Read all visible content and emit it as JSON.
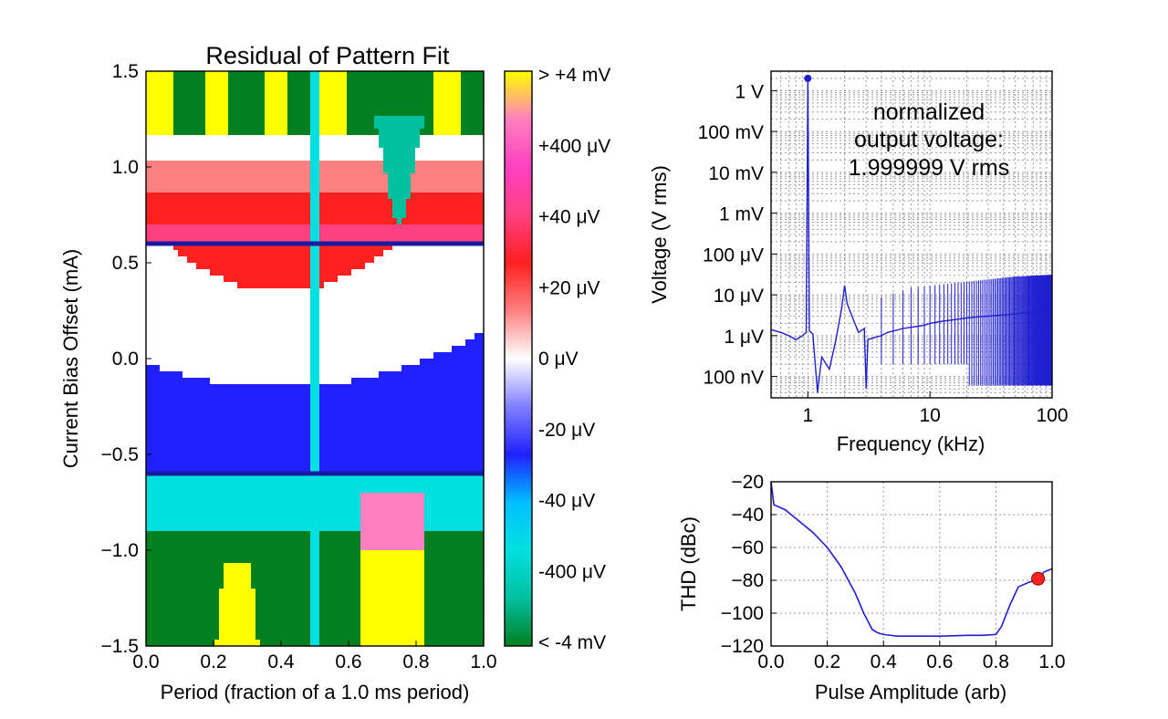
{
  "chart_data": [
    {
      "type": "heatmap",
      "title": "Residual of Pattern Fit",
      "xlabel": "Period (fraction of a 1.0 ms period)",
      "ylabel": "Current Bias Offset (mA)",
      "xlim": [
        0.0,
        1.0
      ],
      "ylim": [
        -1.5,
        1.5
      ],
      "xticks": [
        "0.0",
        "0.2",
        "0.4",
        "0.6",
        "0.8",
        "1.0"
      ],
      "yticks": [
        "1.5",
        "1.0",
        "0.5",
        "0.0",
        "−0.5",
        "−1.0",
        "−1.5"
      ],
      "colorbar": {
        "labels": [
          "> +4 mV",
          "+400 μV",
          "+40 μV",
          "+20 μV",
          "0 μV",
          "-20 μV",
          "-40 μV",
          "-400 μV",
          "< -4 mV"
        ],
        "colors": [
          "#ffff00",
          "#ff80c0",
          "#ff40c0",
          "#ff4080",
          "#ff2020",
          "#ff8080",
          "#ffffff",
          "#8080ff",
          "#2020ff",
          "#00c0ff",
          "#00e0e0",
          "#00c0a0",
          "#008020"
        ]
      },
      "hlines": [
        0.6,
        -0.6
      ],
      "hline_color": "#1a1aa0"
    },
    {
      "type": "line",
      "annotation": [
        "normalized",
        "output voltage:",
        "1.999999 V rms"
      ],
      "xlabel": "Frequency (kHz)",
      "ylabel": "Voltage (V rms)",
      "xscale": "log",
      "yscale": "log",
      "xlim": [
        0.5,
        100
      ],
      "ylim": [
        3e-08,
        3
      ],
      "xticks": [
        "1",
        "10",
        "100"
      ],
      "yticks": [
        "1 V",
        "100 mV",
        "10 mV",
        "1 mV",
        "100 μV",
        "10 μV",
        "1 μV",
        "100 nV"
      ],
      "grid": true,
      "color": "#1f1fd0",
      "series": [
        {
          "x": [
            0.5,
            0.6,
            0.7,
            0.8,
            0.9,
            0.97,
            1.0,
            1.03,
            1.1,
            1.2,
            1.3,
            1.5,
            1.7,
            1.9,
            2.0,
            2.1,
            2.3,
            2.6,
            2.9,
            3.0,
            3.1,
            3.5,
            4.0,
            4.5,
            5.0,
            6.0,
            7.0,
            8.0,
            9.0,
            10,
            12,
            15,
            20,
            25,
            30,
            40,
            50,
            60,
            70,
            80,
            90,
            100
          ],
          "y": [
            1.4e-06,
            1.2e-06,
            1e-06,
            8e-07,
            1e-06,
            1.2e-06,
            2.0,
            1.3e-06,
            1.1e-06,
            4e-08,
            3e-07,
            1.5e-07,
            8e-07,
            5e-06,
            1.7e-05,
            6e-06,
            3e-06,
            1.2e-06,
            1.5e-06,
            5e-08,
            8e-07,
            9e-07,
            1e-06,
            1.2e-06,
            1.3e-06,
            1.5e-06,
            1.6e-06,
            1.7e-06,
            1.8e-06,
            2e-06,
            2.2e-06,
            2.4e-06,
            2.7e-06,
            2.9e-06,
            3e-06,
            3.2e-06,
            3.4e-06,
            3.6e-06,
            3.7e-06,
            3.8e-06,
            3.9e-06,
            4e-06
          ]
        }
      ],
      "band_top": [
        {
          "x": 7,
          "y": 1.5e-05
        },
        {
          "x": 20,
          "y": 2.1e-05
        },
        {
          "x": 50,
          "y": 2.8e-05
        },
        {
          "x": 100,
          "y": 3.1e-05
        }
      ],
      "marker": {
        "x": 1.0,
        "y": 2.0
      }
    },
    {
      "type": "line",
      "xlabel": "Pulse Amplitude (arb)",
      "ylabel": "THD (dBc)",
      "xlim": [
        0.0,
        1.0
      ],
      "ylim": [
        -120,
        -20
      ],
      "xticks": [
        "0.0",
        "0.2",
        "0.4",
        "0.6",
        "0.8",
        "1.0"
      ],
      "yticks": [
        "−20",
        "−40",
        "−60",
        "−80",
        "−100",
        "−120"
      ],
      "grid": true,
      "color": "#1f1fd0",
      "x": [
        0.0,
        0.01,
        0.05,
        0.1,
        0.15,
        0.2,
        0.25,
        0.3,
        0.33,
        0.36,
        0.38,
        0.4,
        0.45,
        0.5,
        0.6,
        0.7,
        0.75,
        0.8,
        0.82,
        0.85,
        0.88,
        0.92,
        0.95,
        0.97,
        1.0
      ],
      "y": [
        -20,
        -34,
        -37,
        -44,
        -51,
        -60,
        -72,
        -88,
        -100,
        -110,
        -112,
        -113,
        -114,
        -114,
        -114,
        -113.5,
        -113.5,
        -113,
        -108,
        -95,
        -84,
        -81,
        -80,
        -75,
        -73
      ],
      "marker": {
        "x": 0.95,
        "y": -79,
        "color": "#ff2020"
      }
    }
  ]
}
